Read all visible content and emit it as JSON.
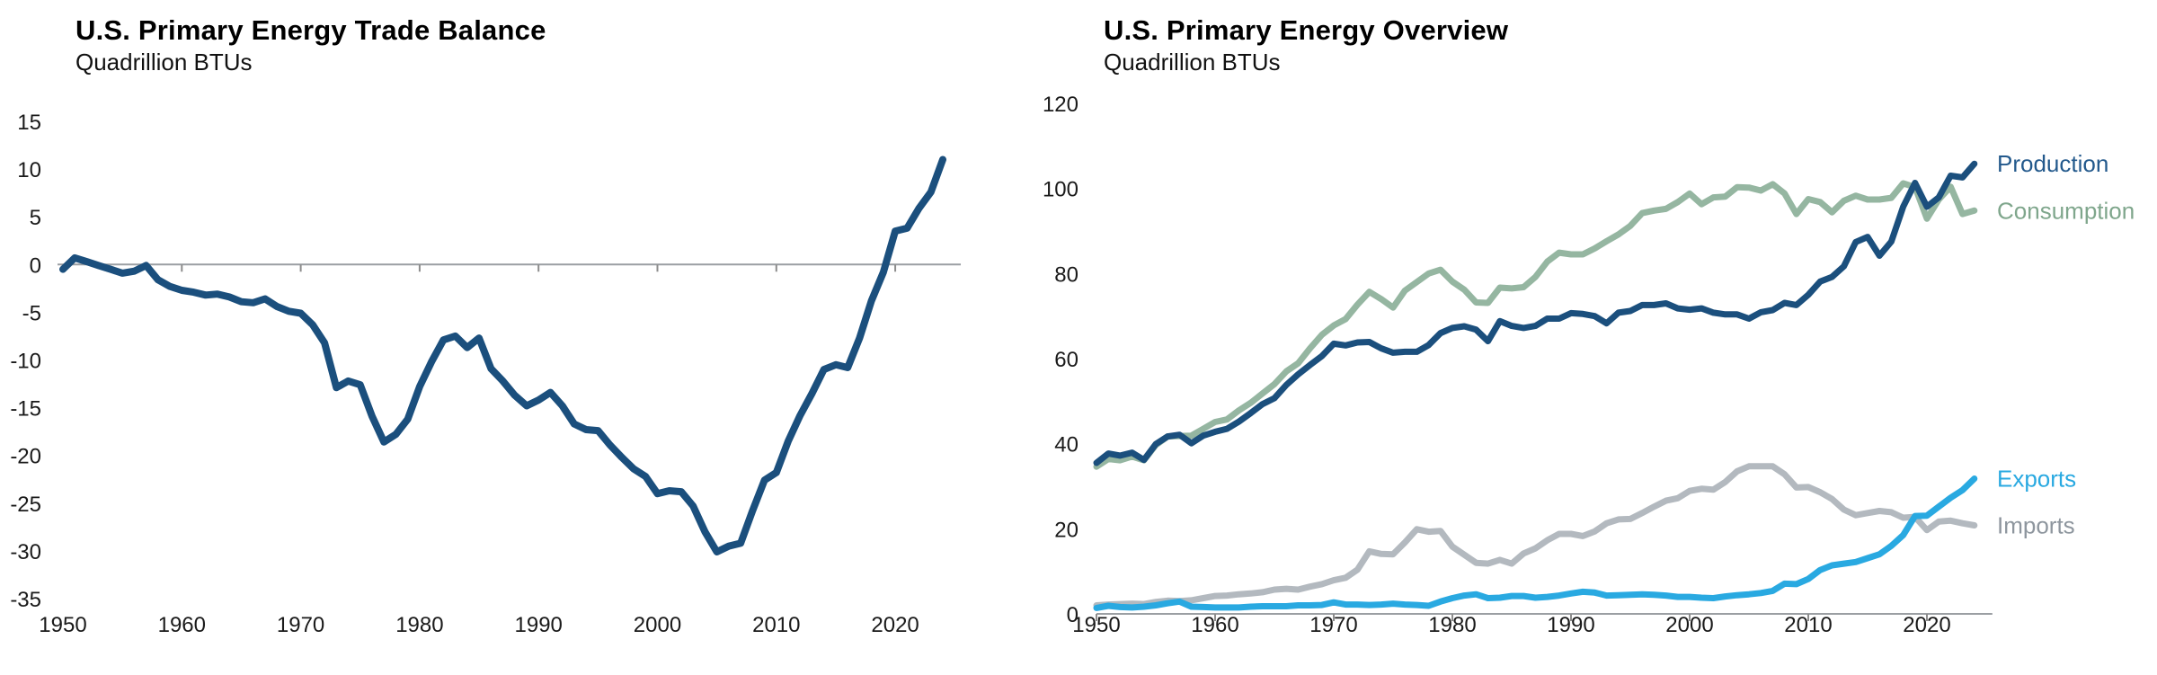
{
  "page": {
    "background": "#ffffff"
  },
  "colors": {
    "navy": "#1B4F7D",
    "sage_green": "#95B6A1",
    "sky_blue": "#29A9E1",
    "light_gray": "#B3B9BF",
    "axis_line": "#9B9FA3",
    "tick_mark": "#8C8C8C",
    "tick_text": "#1A1A1A"
  },
  "charts": [
    {
      "id": "trade-balance",
      "title": "U.S. Primary Energy Trade Balance",
      "subtitle": "Quadrillion BTUs",
      "chart_data": {
        "type": "line",
        "xlabel": "",
        "ylabel": "Quadrillion BTUs",
        "xlim": [
          1950,
          2024
        ],
        "ylim": [
          -35,
          15
        ],
        "y_ticks": [
          15,
          10,
          5,
          0,
          -5,
          -10,
          -15,
          -20,
          -25,
          -30,
          -35
        ],
        "x_ticks": [
          1950,
          1960,
          1970,
          1980,
          1990,
          2000,
          2010,
          2020
        ],
        "grid": false,
        "zero_line": true,
        "legend_position": "none",
        "years": [
          1950,
          1951,
          1952,
          1953,
          1954,
          1955,
          1956,
          1957,
          1958,
          1959,
          1960,
          1961,
          1962,
          1963,
          1964,
          1965,
          1966,
          1967,
          1968,
          1969,
          1970,
          1971,
          1972,
          1973,
          1974,
          1975,
          1976,
          1977,
          1978,
          1979,
          1980,
          1981,
          1982,
          1983,
          1984,
          1985,
          1986,
          1987,
          1988,
          1989,
          1990,
          1991,
          1992,
          1993,
          1994,
          1995,
          1996,
          1997,
          1998,
          1999,
          2000,
          2001,
          2002,
          2003,
          2004,
          2005,
          2006,
          2007,
          2008,
          2009,
          2010,
          2011,
          2012,
          2013,
          2014,
          2015,
          2016,
          2017,
          2018,
          2019,
          2020,
          2021,
          2022,
          2023,
          2024
        ],
        "series": [
          {
            "name": "Trade balance",
            "color": "#1B4F7D",
            "values": [
              -0.5,
              0.7,
              0.3,
              -0.1,
              -0.5,
              -0.9,
              -0.7,
              -0.1,
              -1.6,
              -2.3,
              -2.7,
              -2.9,
              -3.2,
              -3.1,
              -3.4,
              -3.9,
              -4.0,
              -3.6,
              -4.4,
              -4.9,
              -5.1,
              -6.3,
              -8.2,
              -12.9,
              -12.2,
              -12.6,
              -15.9,
              -18.6,
              -17.8,
              -16.2,
              -12.8,
              -10.2,
              -7.9,
              -7.5,
              -8.7,
              -7.7,
              -10.9,
              -12.2,
              -13.7,
              -14.8,
              -14.2,
              -13.4,
              -14.8,
              -16.7,
              -17.3,
              -17.4,
              -18.9,
              -20.2,
              -21.4,
              -22.2,
              -24.0,
              -23.7,
              -23.8,
              -25.3,
              -28.0,
              -30.1,
              -29.5,
              -29.2,
              -25.8,
              -22.6,
              -21.8,
              -18.5,
              -15.8,
              -13.5,
              -11.0,
              -10.5,
              -10.8,
              -7.7,
              -3.8,
              -0.8,
              3.5,
              3.8,
              5.9,
              7.6,
              11.0
            ]
          }
        ]
      }
    },
    {
      "id": "energy-overview",
      "title": "U.S. Primary Energy Overview",
      "subtitle": "Quadrillion BTUs",
      "chart_data": {
        "type": "line",
        "xlabel": "",
        "ylabel": "Quadrillion BTUs",
        "xlim": [
          1950,
          2024
        ],
        "ylim": [
          0,
          120
        ],
        "y_ticks": [
          120,
          100,
          80,
          60,
          40,
          20,
          0
        ],
        "x_ticks": [
          1950,
          1960,
          1970,
          1980,
          1990,
          2000,
          2010,
          2020
        ],
        "grid": false,
        "legend_position": "right-end-labels",
        "years": [
          1950,
          1951,
          1952,
          1953,
          1954,
          1955,
          1956,
          1957,
          1958,
          1959,
          1960,
          1961,
          1962,
          1963,
          1964,
          1965,
          1966,
          1967,
          1968,
          1969,
          1970,
          1971,
          1972,
          1973,
          1974,
          1975,
          1976,
          1977,
          1978,
          1979,
          1980,
          1981,
          1982,
          1983,
          1984,
          1985,
          1986,
          1987,
          1988,
          1989,
          1990,
          1991,
          1992,
          1993,
          1994,
          1995,
          1996,
          1997,
          1998,
          1999,
          2000,
          2001,
          2002,
          2003,
          2004,
          2005,
          2006,
          2007,
          2008,
          2009,
          2010,
          2011,
          2012,
          2013,
          2014,
          2015,
          2016,
          2017,
          2018,
          2019,
          2020,
          2021,
          2022,
          2023,
          2024
        ],
        "series": [
          {
            "name": "Production",
            "color": "#1B4F7D",
            "label_color": "#23598C",
            "values": [
              35.5,
              37.7,
              37.2,
              37.9,
              36.2,
              39.9,
              41.7,
              42.1,
              40.1,
              41.9,
              42.8,
              43.5,
              45.2,
              47.2,
              49.3,
              50.7,
              53.8,
              56.3,
              58.5,
              60.6,
              63.5,
              63.1,
              63.8,
              63.9,
              62.4,
              61.4,
              61.6,
              61.6,
              63.2,
              66.0,
              67.2,
              67.6,
              66.8,
              64.1,
              68.8,
              67.7,
              67.2,
              67.7,
              69.4,
              69.4,
              70.7,
              70.5,
              70.0,
              68.3,
              70.8,
              71.2,
              72.6,
              72.6,
              73.0,
              71.8,
              71.5,
              71.8,
              70.8,
              70.4,
              70.4,
              69.4,
              70.9,
              71.4,
              73.1,
              72.6,
              75.0,
              78.1,
              79.2,
              81.7,
              87.4,
              88.6,
              84.2,
              87.5,
              95.7,
              101.3,
              95.7,
              97.9,
              103.0,
              102.6,
              105.8
            ]
          },
          {
            "name": "Consumption",
            "color": "#95B6A1",
            "label_color": "#7FA68C",
            "values": [
              34.6,
              36.4,
              36.1,
              37.0,
              36.1,
              39.7,
              41.7,
              41.8,
              41.9,
              43.5,
              45.1,
              45.7,
              47.8,
              49.6,
              51.8,
              54.0,
              57.0,
              58.9,
              62.4,
              65.6,
              67.8,
              69.3,
              72.7,
              75.7,
              74.0,
              72.0,
              76.0,
              78.0,
              80.0,
              80.9,
              78.1,
              76.2,
              73.2,
              73.1,
              76.7,
              76.5,
              76.8,
              79.2,
              82.8,
              84.9,
              84.5,
              84.5,
              85.9,
              87.6,
              89.2,
              91.2,
              94.2,
              94.8,
              95.2,
              96.8,
              98.8,
              96.3,
              97.9,
              98.1,
              100.3,
              100.2,
              99.5,
              101.0,
              98.8,
              94.0,
              97.5,
              96.8,
              94.4,
              97.1,
              98.3,
              97.4,
              97.4,
              97.8,
              101.2,
              100.3,
              92.9,
              97.4,
              100.4,
              94.0,
              94.8
            ]
          },
          {
            "name": "Exports",
            "color": "#29A9E1",
            "label_color": "#29A9E1",
            "values": [
              1.4,
              1.9,
              1.6,
              1.5,
              1.7,
              2.0,
              2.5,
              2.9,
              1.7,
              1.6,
              1.5,
              1.5,
              1.5,
              1.7,
              1.8,
              1.8,
              1.8,
              2.0,
              2.0,
              2.1,
              2.7,
              2.2,
              2.2,
              2.1,
              2.2,
              2.4,
              2.2,
              2.1,
              1.9,
              2.9,
              3.7,
              4.3,
              4.6,
              3.7,
              3.8,
              4.2,
              4.2,
              3.8,
              4.0,
              4.3,
              4.8,
              5.2,
              5.0,
              4.3,
              4.4,
              4.5,
              4.6,
              4.5,
              4.3,
              4.0,
              4.0,
              3.8,
              3.7,
              4.1,
              4.4,
              4.6,
              4.9,
              5.4,
              7.1,
              7.0,
              8.2,
              10.3,
              11.4,
              11.8,
              12.2,
              13.1,
              14.0,
              16.0,
              18.5,
              23.0,
              23.1,
              25.2,
              27.3,
              29.1,
              31.8
            ]
          },
          {
            "name": "Imports",
            "color": "#B3B9BF",
            "label_color": "#8E969E",
            "values": [
              2.0,
              2.2,
              2.3,
              2.4,
              2.3,
              2.8,
              3.1,
              3.0,
              3.2,
              3.7,
              4.2,
              4.3,
              4.6,
              4.8,
              5.1,
              5.7,
              5.9,
              5.7,
              6.4,
              7.0,
              7.9,
              8.5,
              10.4,
              14.7,
              14.1,
              14.0,
              16.8,
              19.9,
              19.3,
              19.5,
              15.8,
              13.9,
              12.0,
              11.8,
              12.7,
              11.8,
              14.2,
              15.4,
              17.3,
              18.8,
              18.8,
              18.3,
              19.4,
              21.3,
              22.2,
              22.3,
              23.7,
              25.2,
              26.6,
              27.2,
              28.9,
              29.4,
              29.2,
              31.0,
              33.5,
              34.7,
              34.7,
              34.7,
              32.8,
              29.7,
              29.8,
              28.6,
              27.0,
              24.5,
              23.2,
              23.7,
              24.2,
              23.9,
              22.6,
              22.8,
              19.7,
              21.7,
              21.9,
              21.3,
              20.8
            ]
          }
        ]
      }
    }
  ]
}
